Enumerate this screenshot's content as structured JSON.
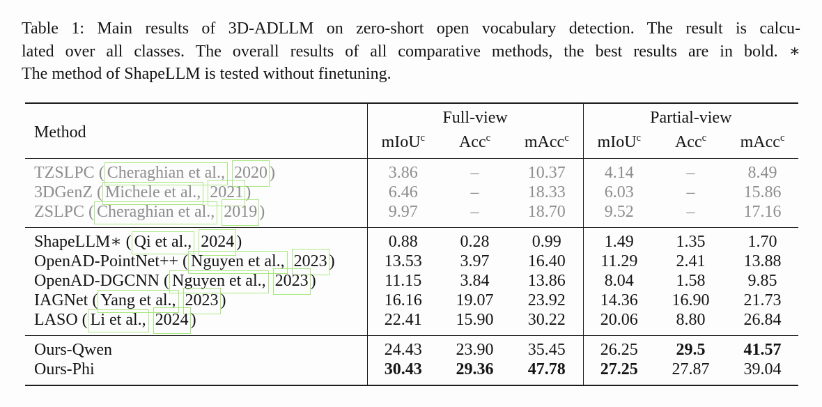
{
  "caption": {
    "lines": [
      "Table 1: Main results of 3D-ADLLM on zero-short open vocabulary detection. The result is calcu-",
      "lated over all classes. The overall results of all comparative methods, the best results are in bold. ∗",
      "The method of ShapeLLM is tested without finetuning."
    ]
  },
  "table": {
    "header": {
      "method": "Method",
      "groups": [
        {
          "label": "Full-view"
        },
        {
          "label": "Partial-view"
        }
      ],
      "metrics": [
        "mIoU",
        "Acc",
        "mAcc"
      ],
      "sup": "c"
    },
    "body": [
      {
        "style": "gray",
        "rows": [
          {
            "method": "TZSLPC",
            "cite_author": "Cheraghian et al.,",
            "cite_year": "2020",
            "values": [
              "3.86",
              "–",
              "10.37",
              "4.14",
              "–",
              "8.49"
            ]
          },
          {
            "method": "3DGenZ",
            "cite_author": "Michele et al.,",
            "cite_year": "2021",
            "values": [
              "6.46",
              "–",
              "18.33",
              "6.03",
              "–",
              "15.86"
            ]
          },
          {
            "method": "ZSLPC",
            "cite_author": "Cheraghian et al.,",
            "cite_year": "2019",
            "values": [
              "9.97",
              "–",
              "18.70",
              "9.52",
              "–",
              "17.16"
            ]
          }
        ]
      },
      {
        "style": "normal",
        "rows": [
          {
            "method": "ShapeLLM∗",
            "cite_author": "Qi et al.,",
            "cite_year": "2024",
            "values": [
              "0.88",
              "0.28",
              "0.99",
              "1.49",
              "1.35",
              "1.70"
            ]
          },
          {
            "method": "OpenAD-PointNet++",
            "cite_author": "Nguyen et al.,",
            "cite_year": "2023",
            "values": [
              "13.53",
              "3.97",
              "16.40",
              "11.29",
              "2.41",
              "13.88"
            ]
          },
          {
            "method": "OpenAD-DGCNN",
            "cite_author": "Nguyen et al.,",
            "cite_year": "2023",
            "values": [
              "11.15",
              "3.84",
              "13.86",
              "8.04",
              "1.58",
              "9.85"
            ]
          },
          {
            "method": "IAGNet",
            "cite_author": "Yang et al.,",
            "cite_year": "2023",
            "values": [
              "16.16",
              "19.07",
              "23.92",
              "14.36",
              "16.90",
              "21.73"
            ]
          },
          {
            "method": "LASO",
            "cite_author": "Li et al.,",
            "cite_year": "2024",
            "values": [
              "22.41",
              "15.90",
              "30.22",
              "20.06",
              "8.80",
              "26.84"
            ]
          }
        ]
      },
      {
        "style": "normal",
        "rows": [
          {
            "method": "Ours-Qwen",
            "values": [
              "24.43",
              "23.90",
              "35.45",
              "26.25",
              "29.5",
              "41.57"
            ],
            "bold": [
              4,
              5
            ]
          },
          {
            "method": "Ours-Phi",
            "values": [
              "30.43",
              "29.36",
              "47.78",
              "27.25",
              "27.87",
              "39.04"
            ],
            "bold": [
              0,
              1,
              2,
              3
            ]
          }
        ]
      }
    ],
    "colors": {
      "citation_box_border": "#a9e87f",
      "gray_text": "#8d8d8d",
      "rule": "#1c1c1c"
    }
  }
}
